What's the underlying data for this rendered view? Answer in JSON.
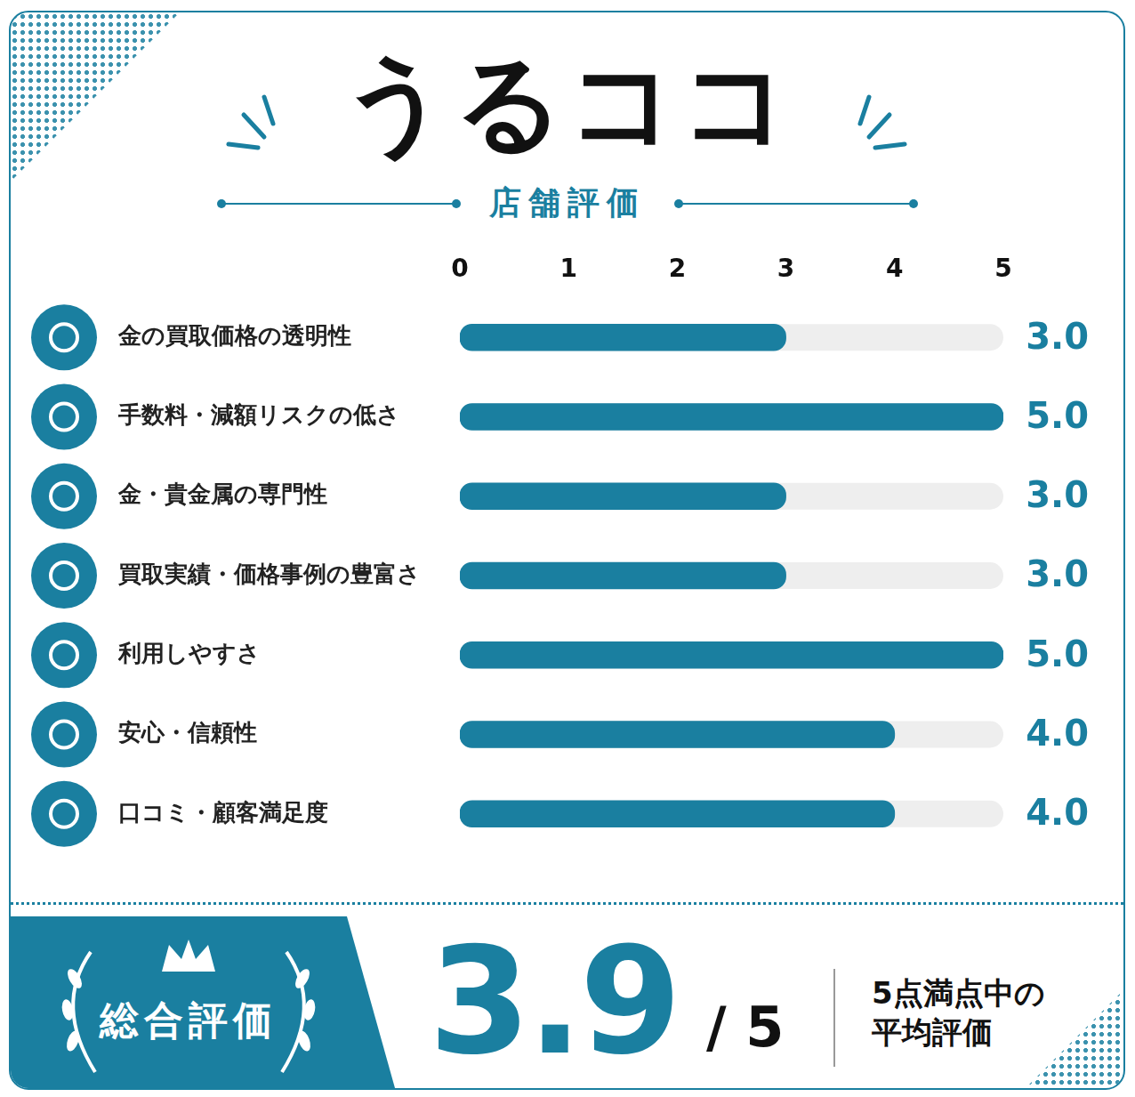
{
  "chart_data": {
    "type": "bar",
    "orientation": "horizontal",
    "title": "うるココ",
    "subtitle": "店舗評価",
    "categories": [
      "金の買取価格の透明性",
      "手数料・減額リスクの低さ",
      "金・貴金属の専門性",
      "買取実績・価格事例の豊富さ",
      "利用しやすさ",
      "安心・信頼性",
      "口コミ・顧客満足度"
    ],
    "values": [
      3,
      5,
      3,
      3,
      5,
      4,
      4
    ],
    "value_labels": [
      "3.0",
      "5.0",
      "3.0",
      "3.0",
      "5.0",
      "4.0",
      "4.0"
    ],
    "data_labels": true,
    "color": "#1a7fa0",
    "xlim": [
      0,
      5
    ],
    "xticks": [
      0,
      1,
      2,
      3,
      4,
      5
    ],
    "grid": false,
    "overall": {
      "label": "総合評価",
      "value": 3.9,
      "out_of": "/ 5",
      "note": [
        "5点満点中の",
        "平均評価"
      ]
    }
  }
}
